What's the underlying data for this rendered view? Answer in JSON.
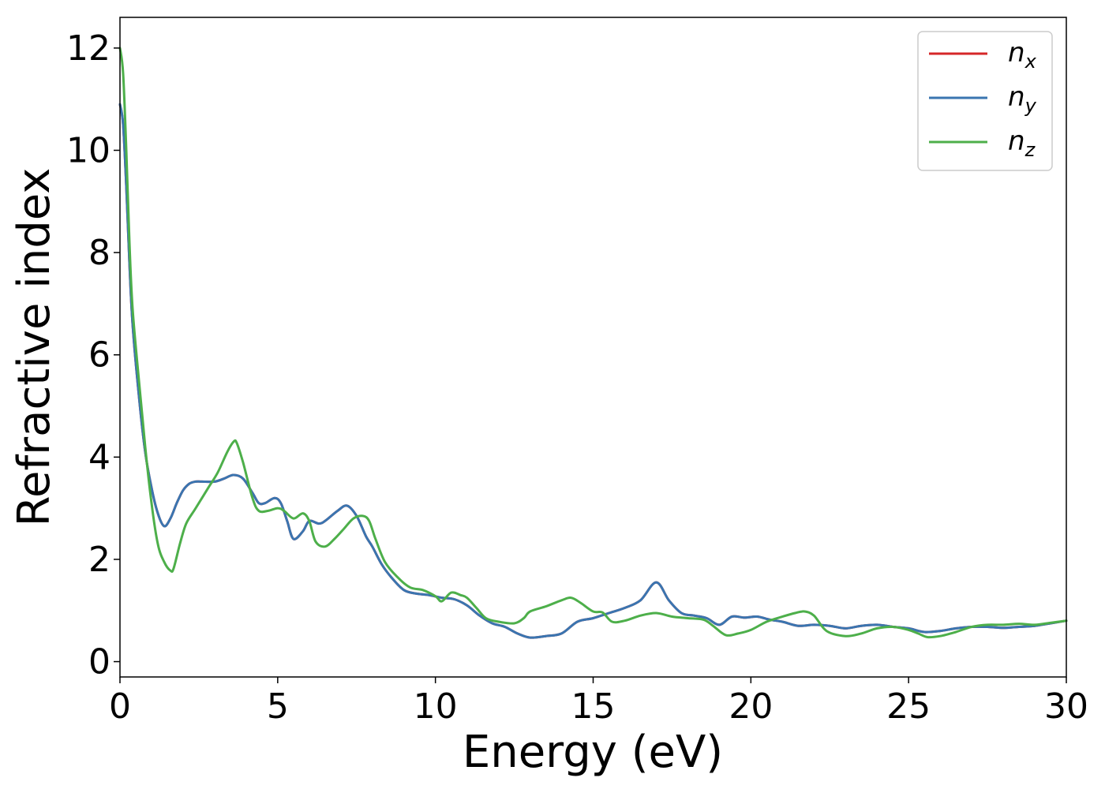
{
  "chart_data": {
    "type": "line",
    "title": "",
    "xlabel": "Energy (eV)",
    "ylabel": "Refractive index",
    "xlim": [
      0,
      30
    ],
    "ylim": [
      -0.3,
      12.6
    ],
    "xticks": [
      0,
      5,
      10,
      15,
      20,
      25,
      30
    ],
    "yticks": [
      0,
      2,
      4,
      6,
      8,
      10,
      12
    ],
    "grid": false,
    "legend_position": "top-right",
    "series": [
      {
        "name": "n_x",
        "legend_base": "n",
        "legend_sub": "x",
        "color": "#d62728",
        "x": [
          0,
          0.1,
          0.2,
          0.3,
          0.4,
          0.6,
          0.8,
          1.0,
          1.2,
          1.4,
          1.6,
          1.8,
          2.0,
          2.2,
          2.4,
          2.6,
          3.0,
          3.3,
          3.6,
          3.9,
          4.2,
          4.4,
          4.6,
          4.9,
          5.1,
          5.3,
          5.5,
          5.8,
          6.0,
          6.3,
          6.5,
          6.9,
          7.2,
          7.5,
          7.8,
          8.0,
          8.3,
          8.6,
          9.0,
          9.4,
          9.8,
          10.2,
          10.6,
          11.0,
          11.4,
          11.8,
          12.2,
          12.6,
          13.0,
          13.5,
          14.0,
          14.5,
          15.0,
          15.5,
          16.0,
          16.5,
          17.0,
          17.4,
          17.8,
          18.2,
          18.6,
          19.0,
          19.4,
          19.8,
          20.2,
          20.6,
          21.0,
          21.5,
          22.0,
          22.5,
          23.0,
          23.5,
          24.0,
          24.5,
          25.0,
          25.5,
          26.0,
          26.5,
          27.0,
          27.5,
          28.0,
          28.5,
          29.0,
          29.5,
          30.0
        ],
        "y": [
          10.9,
          10.5,
          9.3,
          7.8,
          6.6,
          5.2,
          4.1,
          3.4,
          2.9,
          2.65,
          2.8,
          3.1,
          3.35,
          3.48,
          3.52,
          3.52,
          3.52,
          3.58,
          3.65,
          3.58,
          3.3,
          3.1,
          3.1,
          3.2,
          3.1,
          2.75,
          2.4,
          2.55,
          2.75,
          2.7,
          2.75,
          2.95,
          3.05,
          2.85,
          2.45,
          2.25,
          1.9,
          1.65,
          1.4,
          1.33,
          1.3,
          1.25,
          1.22,
          1.1,
          0.9,
          0.75,
          0.68,
          0.55,
          0.47,
          0.5,
          0.55,
          0.78,
          0.85,
          0.95,
          1.05,
          1.2,
          1.55,
          1.2,
          0.95,
          0.9,
          0.85,
          0.72,
          0.88,
          0.86,
          0.88,
          0.82,
          0.78,
          0.7,
          0.72,
          0.7,
          0.65,
          0.7,
          0.72,
          0.68,
          0.65,
          0.58,
          0.6,
          0.65,
          0.68,
          0.68,
          0.66,
          0.68,
          0.7,
          0.75,
          0.8
        ]
      },
      {
        "name": "n_y",
        "legend_base": "n",
        "legend_sub": "y",
        "color": "#3a75b0",
        "x": [
          0,
          0.1,
          0.2,
          0.3,
          0.4,
          0.6,
          0.8,
          1.0,
          1.2,
          1.4,
          1.6,
          1.8,
          2.0,
          2.2,
          2.4,
          2.6,
          3.0,
          3.3,
          3.6,
          3.9,
          4.2,
          4.4,
          4.6,
          4.9,
          5.1,
          5.3,
          5.5,
          5.8,
          6.0,
          6.3,
          6.5,
          6.9,
          7.2,
          7.5,
          7.8,
          8.0,
          8.3,
          8.6,
          9.0,
          9.4,
          9.8,
          10.2,
          10.6,
          11.0,
          11.4,
          11.8,
          12.2,
          12.6,
          13.0,
          13.5,
          14.0,
          14.5,
          15.0,
          15.5,
          16.0,
          16.5,
          17.0,
          17.4,
          17.8,
          18.2,
          18.6,
          19.0,
          19.4,
          19.8,
          20.2,
          20.6,
          21.0,
          21.5,
          22.0,
          22.5,
          23.0,
          23.5,
          24.0,
          24.5,
          25.0,
          25.5,
          26.0,
          26.5,
          27.0,
          27.5,
          28.0,
          28.5,
          29.0,
          29.5,
          30.0
        ],
        "y": [
          10.9,
          10.5,
          9.3,
          7.8,
          6.6,
          5.2,
          4.1,
          3.4,
          2.9,
          2.65,
          2.8,
          3.1,
          3.35,
          3.48,
          3.52,
          3.52,
          3.52,
          3.58,
          3.65,
          3.58,
          3.3,
          3.1,
          3.1,
          3.2,
          3.1,
          2.75,
          2.4,
          2.55,
          2.75,
          2.7,
          2.75,
          2.95,
          3.05,
          2.85,
          2.45,
          2.25,
          1.9,
          1.65,
          1.4,
          1.33,
          1.3,
          1.25,
          1.22,
          1.1,
          0.9,
          0.75,
          0.68,
          0.55,
          0.47,
          0.5,
          0.55,
          0.78,
          0.85,
          0.95,
          1.05,
          1.2,
          1.55,
          1.2,
          0.95,
          0.9,
          0.85,
          0.72,
          0.88,
          0.86,
          0.88,
          0.82,
          0.78,
          0.7,
          0.72,
          0.7,
          0.65,
          0.7,
          0.72,
          0.68,
          0.65,
          0.58,
          0.6,
          0.65,
          0.68,
          0.68,
          0.66,
          0.68,
          0.7,
          0.75,
          0.8
        ]
      },
      {
        "name": "n_z",
        "legend_base": "n",
        "legend_sub": "z",
        "color": "#4daf4a",
        "x": [
          0,
          0.1,
          0.2,
          0.3,
          0.4,
          0.6,
          0.8,
          1.0,
          1.2,
          1.4,
          1.6,
          1.7,
          1.9,
          2.1,
          2.4,
          2.8,
          3.1,
          3.4,
          3.6,
          3.7,
          3.9,
          4.2,
          4.4,
          4.7,
          5.0,
          5.2,
          5.5,
          5.8,
          6.0,
          6.2,
          6.5,
          6.8,
          7.1,
          7.4,
          7.7,
          7.9,
          8.1,
          8.4,
          8.8,
          9.2,
          9.6,
          10.0,
          10.2,
          10.5,
          10.8,
          11.0,
          11.3,
          11.6,
          12.0,
          12.5,
          12.8,
          13.0,
          13.5,
          14.0,
          14.3,
          14.6,
          15.0,
          15.3,
          15.6,
          16.0,
          16.5,
          17.0,
          17.5,
          18.0,
          18.5,
          18.8,
          19.2,
          19.6,
          20.0,
          20.5,
          21.0,
          21.4,
          21.7,
          22.0,
          22.4,
          23.0,
          23.5,
          24.0,
          24.5,
          25.0,
          25.3,
          25.6,
          26.0,
          26.5,
          27.0,
          27.5,
          28.0,
          28.5,
          29.0,
          29.5,
          30.0
        ],
        "y": [
          12.0,
          11.5,
          10.0,
          8.2,
          6.9,
          5.5,
          4.2,
          3.1,
          2.3,
          1.95,
          1.78,
          1.82,
          2.3,
          2.7,
          3.0,
          3.4,
          3.7,
          4.1,
          4.3,
          4.28,
          3.9,
          3.2,
          2.95,
          2.95,
          3.0,
          2.95,
          2.8,
          2.9,
          2.75,
          2.35,
          2.25,
          2.4,
          2.6,
          2.8,
          2.85,
          2.75,
          2.4,
          1.95,
          1.65,
          1.45,
          1.4,
          1.28,
          1.18,
          1.35,
          1.3,
          1.25,
          1.05,
          0.85,
          0.78,
          0.75,
          0.85,
          0.98,
          1.08,
          1.2,
          1.25,
          1.15,
          0.98,
          0.96,
          0.78,
          0.8,
          0.9,
          0.95,
          0.88,
          0.85,
          0.82,
          0.7,
          0.52,
          0.55,
          0.62,
          0.78,
          0.88,
          0.95,
          0.98,
          0.9,
          0.6,
          0.5,
          0.55,
          0.65,
          0.68,
          0.62,
          0.55,
          0.48,
          0.5,
          0.58,
          0.68,
          0.72,
          0.72,
          0.74,
          0.72,
          0.76,
          0.8
        ]
      }
    ]
  }
}
